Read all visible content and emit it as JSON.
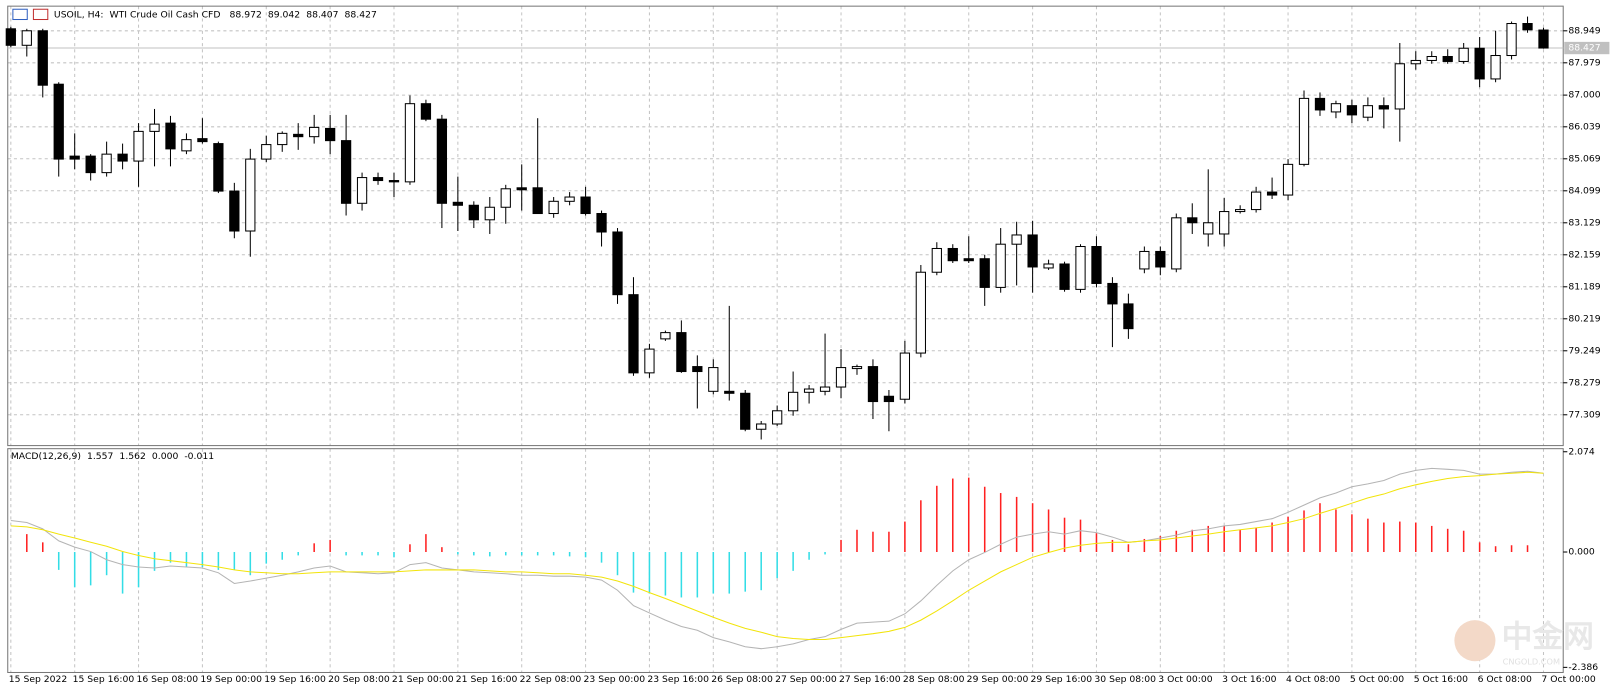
{
  "chart_data": [
    {
      "type": "candlestick",
      "title": "USOIL, H4:",
      "subtitle": "WTI Crude Oil Cash CFD",
      "ohlc": [
        88.972,
        89.042,
        88.407,
        88.427
      ],
      "categories": [
        "15 Sep 2022",
        null,
        null,
        null,
        "15 Sep 16:00",
        null,
        null,
        null,
        "16 Sep 08:00",
        null,
        null,
        null,
        "19 Sep 00:00",
        null,
        null,
        null,
        "19 Sep 16:00",
        null,
        null,
        null,
        "20 Sep 08:00",
        null,
        null,
        null,
        "21 Sep 00:00",
        null,
        null,
        null,
        "21 Sep 16:00",
        null,
        null,
        null,
        "22 Sep 08:00",
        null,
        null,
        null,
        "23 Sep 00:00",
        null,
        null,
        null,
        "23 Sep 16:00",
        null,
        null,
        null,
        "26 Sep 08:00",
        null,
        null,
        null,
        "27 Sep 00:00",
        null,
        null,
        null,
        "27 Sep 16:00",
        null,
        null,
        null,
        "28 Sep 08:00",
        null,
        null,
        null,
        "29 Sep 00:00",
        null,
        null,
        null,
        "29 Sep 16:00",
        null,
        null,
        null,
        "30 Sep 08:00",
        null,
        null,
        null,
        "3 Oct 00:00",
        null,
        null,
        null,
        "3 Oct 16:00",
        null,
        null,
        null,
        "4 Oct 08:00",
        null,
        null,
        null,
        "5 Oct 00:00",
        null,
        null,
        null,
        "5 Oct 16:00",
        null,
        null,
        null,
        "6 Oct 08:00",
        null,
        null,
        null,
        "7 Oct 00:00"
      ],
      "open": [
        89.01,
        88.51,
        88.95,
        87.33,
        85.15,
        85.15,
        84.65,
        85.21,
        85.0,
        85.9,
        86.15,
        85.31,
        85.68,
        85.53,
        84.09,
        82.88,
        85.06,
        85.5,
        85.81,
        85.74,
        85.99,
        85.62,
        83.72,
        84.5,
        84.41,
        84.37,
        86.74,
        86.27,
        83.75,
        83.66,
        83.22,
        83.6,
        84.19,
        84.19,
        83.41,
        83.78,
        83.91,
        83.41,
        82.85,
        80.95,
        78.58,
        79.61,
        79.8,
        78.77,
        78.02,
        78.02,
        77.96,
        76.87,
        77.03,
        77.43,
        77.99,
        78.02,
        78.15,
        78.71,
        78.77,
        77.87,
        77.78,
        79.18,
        81.63,
        82.35,
        82.04,
        82.04,
        81.17,
        82.48,
        82.76,
        81.76,
        81.88,
        81.11,
        82.41,
        81.29,
        80.67,
        81.73,
        82.26,
        81.73,
        83.28,
        82.79,
        82.79,
        83.47,
        83.53,
        84.06,
        83.97,
        84.9,
        86.9,
        86.49,
        86.68,
        86.33,
        86.68,
        86.58,
        87.95,
        88.05,
        88.17,
        88.02,
        88.42,
        87.49,
        88.2,
        89.17,
        88.972
      ],
      "high": [
        89.07,
        89.01,
        89.01,
        87.39,
        85.84,
        85.21,
        85.59,
        85.53,
        86.15,
        86.58,
        86.37,
        85.84,
        86.3,
        85.59,
        84.34,
        85.37,
        85.77,
        85.9,
        86.15,
        86.4,
        86.4,
        86.4,
        84.65,
        84.65,
        84.65,
        86.99,
        86.86,
        86.4,
        84.53,
        83.78,
        83.91,
        84.28,
        84.9,
        86.3,
        83.91,
        84.06,
        84.22,
        83.5,
        82.97,
        81.48,
        79.46,
        79.86,
        80.17,
        79.11,
        78.99,
        80.61,
        78.06,
        77.12,
        77.59,
        78.62,
        78.21,
        79.77,
        79.3,
        78.83,
        78.99,
        78.06,
        79.55,
        81.85,
        82.54,
        82.48,
        82.72,
        82.16,
        82.97,
        83.16,
        83.19,
        82.01,
        81.95,
        82.48,
        82.72,
        81.48,
        80.98,
        82.41,
        82.41,
        83.41,
        83.72,
        84.75,
        83.88,
        83.66,
        84.22,
        84.5,
        85.06,
        87.14,
        87.08,
        86.83,
        86.86,
        86.93,
        86.93,
        88.58,
        88.33,
        88.33,
        88.39,
        88.58,
        88.76,
        88.95,
        89.23,
        89.38,
        89.042
      ],
      "low": [
        88.45,
        88.17,
        86.93,
        84.53,
        84.75,
        84.41,
        84.53,
        84.75,
        84.22,
        84.84,
        84.84,
        85.21,
        85.53,
        84.03,
        82.66,
        82.1,
        84.97,
        85.28,
        85.34,
        85.53,
        85.21,
        83.35,
        83.5,
        84.28,
        83.91,
        84.28,
        86.21,
        82.97,
        82.88,
        82.97,
        82.79,
        83.1,
        83.5,
        83.41,
        83.28,
        83.66,
        83.35,
        82.41,
        80.67,
        78.49,
        78.43,
        79.55,
        78.58,
        77.5,
        77.93,
        77.74,
        76.81,
        76.56,
        76.97,
        77.28,
        77.65,
        77.9,
        77.81,
        78.52,
        77.18,
        76.81,
        77.65,
        79.05,
        81.54,
        81.91,
        81.91,
        80.61,
        81.01,
        81.23,
        81.01,
        81.7,
        81.04,
        81.01,
        81.17,
        79.36,
        79.61,
        81.6,
        81.54,
        81.63,
        82.79,
        82.41,
        82.41,
        83.41,
        83.44,
        83.85,
        83.81,
        84.84,
        86.37,
        86.3,
        86.15,
        86.21,
        85.99,
        85.59,
        87.77,
        87.95,
        87.95,
        87.95,
        87.24,
        87.39,
        88.08,
        88.89,
        88.407
      ],
      "close": [
        88.51,
        88.95,
        87.3,
        85.06,
        85.06,
        84.65,
        85.21,
        85.0,
        85.9,
        86.12,
        85.37,
        85.65,
        85.59,
        84.09,
        82.88,
        85.06,
        85.5,
        85.84,
        85.74,
        86.02,
        85.62,
        83.72,
        84.5,
        84.41,
        84.37,
        86.74,
        86.27,
        83.72,
        83.66,
        83.22,
        83.6,
        84.16,
        84.13,
        83.41,
        83.78,
        83.91,
        83.41,
        82.85,
        80.95,
        78.58,
        79.3,
        79.8,
        78.62,
        78.62,
        78.74,
        77.96,
        76.87,
        77.03,
        77.43,
        77.99,
        78.09,
        78.15,
        78.74,
        78.77,
        77.71,
        77.71,
        79.18,
        81.63,
        82.35,
        81.98,
        81.98,
        81.17,
        82.48,
        82.76,
        81.79,
        81.88,
        81.11,
        82.41,
        81.29,
        80.67,
        79.92,
        82.26,
        81.79,
        83.28,
        83.13,
        83.13,
        83.47,
        83.53,
        84.06,
        83.97,
        84.9,
        86.9,
        86.55,
        86.74,
        86.4,
        86.68,
        86.58,
        87.95,
        88.05,
        88.17,
        88.02,
        88.42,
        87.49,
        88.2,
        89.17,
        88.98,
        88.427
      ],
      "up_color": "#ffffff",
      "down_color": "#000000",
      "ylim": [
        76.406,
        89.634
      ],
      "yticks": [
        88.949,
        87.979,
        {
          "value": 87,
          "label": "87.000"
        },
        86.039,
        85.069,
        84.099,
        83.129,
        82.159,
        81.189,
        80.219,
        79.249,
        78.279,
        77.309
      ],
      "grid": true,
      "current_price": 88.427,
      "current_price_color": "#c0c0c0"
    },
    {
      "type": "macd",
      "title": "MACD(12,26,9)",
      "values": [
        1.557,
        1.562,
        0,
        -0.011
      ],
      "value_labels": [
        "1.557",
        "1.562",
        "0.000",
        "-0.011"
      ],
      "histogram": {
        "pos_color": "#ff2020",
        "neg_color": "#33dde6",
        "values": [
          0,
          0.37,
          0.2,
          -0.37,
          -0.73,
          -0.69,
          -0.48,
          -0.86,
          -0.73,
          -0.39,
          -0.22,
          -0.31,
          -0.31,
          -0.37,
          -0.37,
          -0.48,
          -0.24,
          -0.16,
          -0.07,
          0.18,
          0.25,
          -0.07,
          -0.07,
          -0.07,
          -0.11,
          0.16,
          0.37,
          0.1,
          -0.05,
          -0.07,
          -0.09,
          -0.07,
          -0.07,
          -0.07,
          -0.07,
          -0.09,
          -0.11,
          -0.22,
          -0.48,
          -0.84,
          -0.86,
          -0.9,
          -0.94,
          -0.94,
          -0.86,
          -0.86,
          -0.82,
          -0.79,
          -0.54,
          -0.39,
          -0.16,
          -0.05,
          0.25,
          0.46,
          0.42,
          0.42,
          0.63,
          1.07,
          1.37,
          1.52,
          1.54,
          1.35,
          1.22,
          1.14,
          1.01,
          0.88,
          0.71,
          0.67,
          0.39,
          0.25,
          0.16,
          0.27,
          0.33,
          0.44,
          0.46,
          0.54,
          0.54,
          0.46,
          0.5,
          0.61,
          0.73,
          0.86,
          1.01,
          0.88,
          0.78,
          0.69,
          0.61,
          0.63,
          0.61,
          0.54,
          0.48,
          0.44,
          0.2,
          0.12,
          0.14,
          0.14,
          0
        ]
      },
      "macd": {
        "color": "#b4b4b4",
        "values": [
          0.65,
          0.61,
          0.48,
          0.23,
          0.1,
          0.01,
          -0.16,
          -0.26,
          -0.31,
          -0.33,
          -0.29,
          -0.31,
          -0.33,
          -0.43,
          -0.65,
          -0.6,
          -0.54,
          -0.48,
          -0.41,
          -0.33,
          -0.29,
          -0.41,
          -0.43,
          -0.45,
          -0.43,
          -0.26,
          -0.22,
          -0.33,
          -0.37,
          -0.41,
          -0.43,
          -0.45,
          -0.48,
          -0.48,
          -0.5,
          -0.5,
          -0.52,
          -0.58,
          -0.79,
          -1.11,
          -1.26,
          -1.41,
          -1.54,
          -1.62,
          -1.77,
          -1.86,
          -1.96,
          -2.0,
          -1.96,
          -1.9,
          -1.81,
          -1.75,
          -1.6,
          -1.47,
          -1.45,
          -1.43,
          -1.28,
          -1.01,
          -0.69,
          -0.39,
          -0.16,
          -0.01,
          0.16,
          0.31,
          0.37,
          0.42,
          0.37,
          0.44,
          0.4,
          0.31,
          0.2,
          0.23,
          0.29,
          0.35,
          0.44,
          0.48,
          0.54,
          0.57,
          0.63,
          0.69,
          0.82,
          0.97,
          1.12,
          1.22,
          1.35,
          1.41,
          1.48,
          1.61,
          1.69,
          1.73,
          1.71,
          1.69,
          1.61,
          1.61,
          1.65,
          1.67,
          1.63
        ]
      },
      "signal": {
        "color": "#f2e40a",
        "values": [
          0.54,
          0.52,
          0.46,
          0.37,
          0.29,
          0.2,
          0.12,
          0.01,
          -0.07,
          -0.14,
          -0.18,
          -0.22,
          -0.26,
          -0.31,
          -0.37,
          -0.41,
          -0.43,
          -0.45,
          -0.45,
          -0.43,
          -0.41,
          -0.41,
          -0.41,
          -0.41,
          -0.41,
          -0.39,
          -0.37,
          -0.37,
          -0.37,
          -0.37,
          -0.39,
          -0.41,
          -0.41,
          -0.43,
          -0.45,
          -0.45,
          -0.48,
          -0.52,
          -0.6,
          -0.71,
          -0.84,
          -0.96,
          -1.09,
          -1.22,
          -1.35,
          -1.47,
          -1.58,
          -1.66,
          -1.75,
          -1.79,
          -1.81,
          -1.81,
          -1.77,
          -1.73,
          -1.69,
          -1.64,
          -1.56,
          -1.41,
          -1.22,
          -1.01,
          -0.79,
          -0.6,
          -0.41,
          -0.26,
          -0.11,
          -0.01,
          0.08,
          0.14,
          0.18,
          0.2,
          0.2,
          0.23,
          0.25,
          0.29,
          0.33,
          0.37,
          0.42,
          0.46,
          0.5,
          0.54,
          0.61,
          0.69,
          0.8,
          0.9,
          1.01,
          1.12,
          1.2,
          1.31,
          1.39,
          1.46,
          1.52,
          1.56,
          1.58,
          1.61,
          1.63,
          1.65,
          1.63
        ]
      },
      "ylim": [
        -2.386,
        2.074
      ],
      "yticks": [
        2.074,
        {
          "value": 0,
          "label": "0.000"
        },
        -2.386
      ]
    }
  ],
  "watermark": {
    "logo": "中金网",
    "url": "CNGOLD.COM"
  }
}
